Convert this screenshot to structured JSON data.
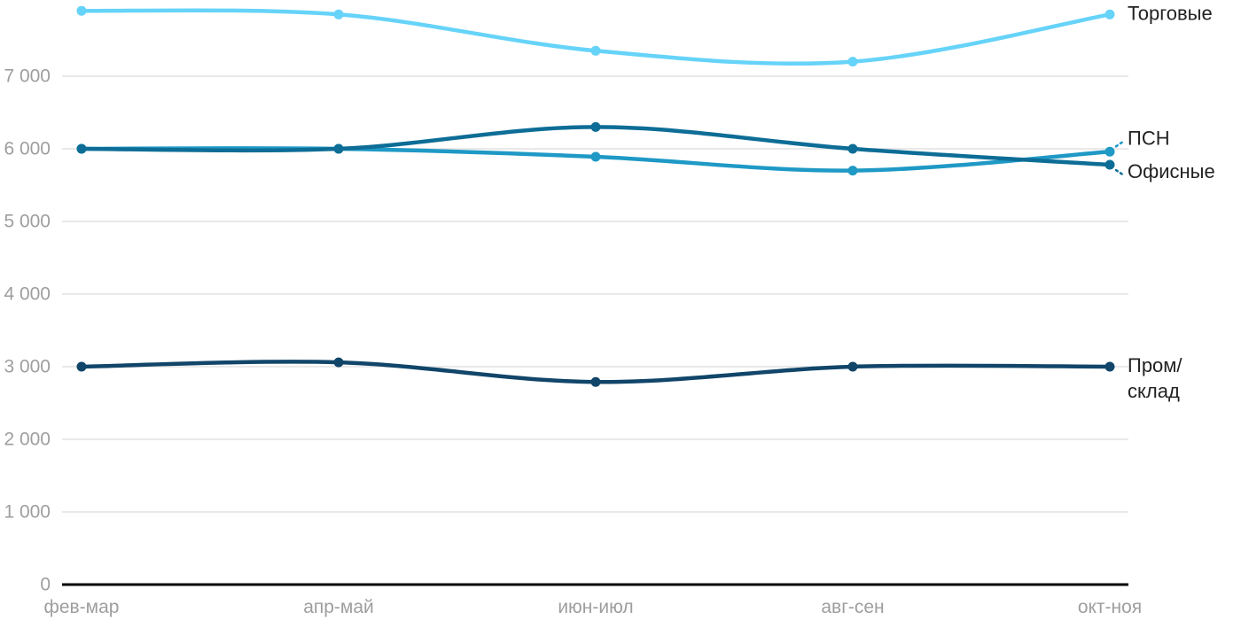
{
  "chart_data": {
    "type": "line",
    "title": "",
    "xlabel": "",
    "ylabel": "",
    "categories": [
      "фев-мар",
      "апр-май",
      "июн-июл",
      "авг-сен",
      "окт-ноя"
    ],
    "series": [
      {
        "name": "Торговые",
        "label_lines": [
          "Торговые"
        ],
        "values": [
          7900,
          7850,
          7350,
          7200,
          7850
        ],
        "color": "#66d3f9"
      },
      {
        "name": "ПСН",
        "label_lines": [
          "ПСН"
        ],
        "values": [
          6000,
          6000,
          5890,
          5700,
          5960
        ],
        "color": "#1f99c5"
      },
      {
        "name": "Офисные",
        "label_lines": [
          "Офисные"
        ],
        "values": [
          6000,
          6000,
          6300,
          6000,
          5780
        ],
        "color": "#0d6d96"
      },
      {
        "name": "Пром/склад",
        "label_lines": [
          "Пром/",
          "склад"
        ],
        "values": [
          3000,
          3060,
          2790,
          3000,
          3000
        ],
        "color": "#114569"
      }
    ],
    "ylim": [
      0,
      8000
    ],
    "yticks": [
      0,
      1000,
      2000,
      3000,
      4000,
      5000,
      6000,
      7000
    ],
    "ytick_labels": [
      "0",
      "1 000",
      "2 000",
      "3 000",
      "4 000",
      "5 000",
      "6 000",
      "7 000"
    ],
    "grid": "horizontal",
    "legend_position": "direct-right-labels"
  },
  "colors": {
    "background": "#ffffff",
    "gridline": "#e9e9e9",
    "axis_line": "#000000",
    "tick_label": "#9e9e9e",
    "series_label": "#222222"
  }
}
